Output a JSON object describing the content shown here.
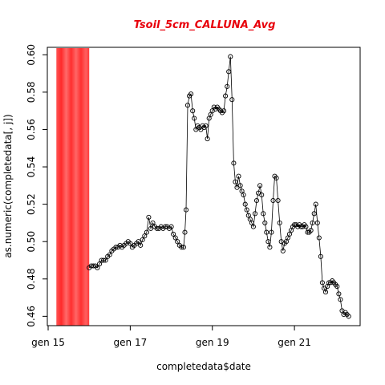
{
  "chart_data": {
    "type": "scatter",
    "title": "Tsoil_5cm_CALLUNA_Avg",
    "xlabel": "completedata$date",
    "ylabel": "as.numeric(completedata[, j])",
    "x_tick_labels": [
      "gen 15",
      "gen 17",
      "gen 19",
      "gen 21"
    ],
    "x_tick_days": [
      15,
      17,
      19,
      21
    ],
    "y_ticks": [
      0.46,
      0.48,
      0.5,
      0.52,
      0.54,
      0.56,
      0.58,
      0.6
    ],
    "xlim_days": [
      14.98,
      22.6
    ],
    "ylim": [
      0.455,
      0.604
    ],
    "highlight_band": {
      "x_start_days": 15.2,
      "x_end_days": 16.0,
      "color": "#ff3b3b"
    },
    "series_style": {
      "marker": "open-circle",
      "line": true,
      "color": "#000000"
    },
    "points": [
      [
        16.0,
        0.486
      ],
      [
        16.05,
        0.487
      ],
      [
        16.1,
        0.487
      ],
      [
        16.15,
        0.487
      ],
      [
        16.2,
        0.486
      ],
      [
        16.25,
        0.488
      ],
      [
        16.3,
        0.49
      ],
      [
        16.35,
        0.49
      ],
      [
        16.4,
        0.49
      ],
      [
        16.45,
        0.492
      ],
      [
        16.5,
        0.493
      ],
      [
        16.55,
        0.495
      ],
      [
        16.6,
        0.496
      ],
      [
        16.65,
        0.497
      ],
      [
        16.7,
        0.497
      ],
      [
        16.75,
        0.498
      ],
      [
        16.8,
        0.497
      ],
      [
        16.85,
        0.498
      ],
      [
        16.9,
        0.499
      ],
      [
        16.95,
        0.5
      ],
      [
        17.0,
        0.499
      ],
      [
        17.05,
        0.497
      ],
      [
        17.1,
        0.498
      ],
      [
        17.15,
        0.499
      ],
      [
        17.2,
        0.5
      ],
      [
        17.25,
        0.498
      ],
      [
        17.3,
        0.501
      ],
      [
        17.35,
        0.503
      ],
      [
        17.4,
        0.505
      ],
      [
        17.45,
        0.513
      ],
      [
        17.5,
        0.507
      ],
      [
        17.55,
        0.51
      ],
      [
        17.6,
        0.508
      ],
      [
        17.65,
        0.507
      ],
      [
        17.7,
        0.507
      ],
      [
        17.75,
        0.508
      ],
      [
        17.8,
        0.507
      ],
      [
        17.85,
        0.508
      ],
      [
        17.9,
        0.508
      ],
      [
        17.95,
        0.507
      ],
      [
        18.0,
        0.508
      ],
      [
        18.05,
        0.504
      ],
      [
        18.1,
        0.502
      ],
      [
        18.15,
        0.5
      ],
      [
        18.2,
        0.498
      ],
      [
        18.25,
        0.497
      ],
      [
        18.3,
        0.497
      ],
      [
        18.33,
        0.505
      ],
      [
        18.36,
        0.517
      ],
      [
        18.4,
        0.573
      ],
      [
        18.44,
        0.578
      ],
      [
        18.48,
        0.579
      ],
      [
        18.52,
        0.57
      ],
      [
        18.56,
        0.566
      ],
      [
        18.6,
        0.56
      ],
      [
        18.64,
        0.562
      ],
      [
        18.68,
        0.561
      ],
      [
        18.72,
        0.56
      ],
      [
        18.76,
        0.562
      ],
      [
        18.8,
        0.561
      ],
      [
        18.84,
        0.562
      ],
      [
        18.88,
        0.555
      ],
      [
        18.92,
        0.566
      ],
      [
        18.96,
        0.568
      ],
      [
        19.0,
        0.57
      ],
      [
        19.04,
        0.572
      ],
      [
        19.08,
        0.571
      ],
      [
        19.12,
        0.572
      ],
      [
        19.16,
        0.571
      ],
      [
        19.2,
        0.57
      ],
      [
        19.24,
        0.569
      ],
      [
        19.28,
        0.57
      ],
      [
        19.32,
        0.578
      ],
      [
        19.36,
        0.583
      ],
      [
        19.4,
        0.591
      ],
      [
        19.44,
        0.599
      ],
      [
        19.48,
        0.576
      ],
      [
        19.52,
        0.542
      ],
      [
        19.56,
        0.532
      ],
      [
        19.6,
        0.529
      ],
      [
        19.64,
        0.535
      ],
      [
        19.68,
        0.53
      ],
      [
        19.72,
        0.527
      ],
      [
        19.76,
        0.525
      ],
      [
        19.8,
        0.52
      ],
      [
        19.84,
        0.517
      ],
      [
        19.88,
        0.514
      ],
      [
        19.92,
        0.512
      ],
      [
        19.96,
        0.51
      ],
      [
        20.0,
        0.508
      ],
      [
        20.04,
        0.515
      ],
      [
        20.08,
        0.522
      ],
      [
        20.12,
        0.526
      ],
      [
        20.16,
        0.53
      ],
      [
        20.2,
        0.525
      ],
      [
        20.24,
        0.515
      ],
      [
        20.28,
        0.51
      ],
      [
        20.32,
        0.505
      ],
      [
        20.36,
        0.5
      ],
      [
        20.4,
        0.497
      ],
      [
        20.44,
        0.505
      ],
      [
        20.48,
        0.522
      ],
      [
        20.52,
        0.535
      ],
      [
        20.56,
        0.534
      ],
      [
        20.6,
        0.522
      ],
      [
        20.64,
        0.51
      ],
      [
        20.68,
        0.5
      ],
      [
        20.72,
        0.495
      ],
      [
        20.76,
        0.499
      ],
      [
        20.8,
        0.5
      ],
      [
        20.84,
        0.502
      ],
      [
        20.88,
        0.504
      ],
      [
        20.92,
        0.506
      ],
      [
        20.96,
        0.508
      ],
      [
        21.0,
        0.509
      ],
      [
        21.04,
        0.509
      ],
      [
        21.08,
        0.508
      ],
      [
        21.12,
        0.509
      ],
      [
        21.16,
        0.508
      ],
      [
        21.2,
        0.508
      ],
      [
        21.24,
        0.509
      ],
      [
        21.28,
        0.508
      ],
      [
        21.32,
        0.505
      ],
      [
        21.36,
        0.505
      ],
      [
        21.4,
        0.506
      ],
      [
        21.44,
        0.51
      ],
      [
        21.48,
        0.515
      ],
      [
        21.52,
        0.52
      ],
      [
        21.56,
        0.51
      ],
      [
        21.6,
        0.502
      ],
      [
        21.64,
        0.492
      ],
      [
        21.68,
        0.478
      ],
      [
        21.72,
        0.475
      ],
      [
        21.76,
        0.473
      ],
      [
        21.8,
        0.476
      ],
      [
        21.84,
        0.478
      ],
      [
        21.88,
        0.478
      ],
      [
        21.92,
        0.479
      ],
      [
        21.96,
        0.478
      ],
      [
        22.0,
        0.477
      ],
      [
        22.04,
        0.476
      ],
      [
        22.08,
        0.472
      ],
      [
        22.12,
        0.469
      ],
      [
        22.16,
        0.463
      ],
      [
        22.2,
        0.461
      ],
      [
        22.24,
        0.462
      ],
      [
        22.28,
        0.461
      ],
      [
        22.32,
        0.46
      ]
    ]
  }
}
